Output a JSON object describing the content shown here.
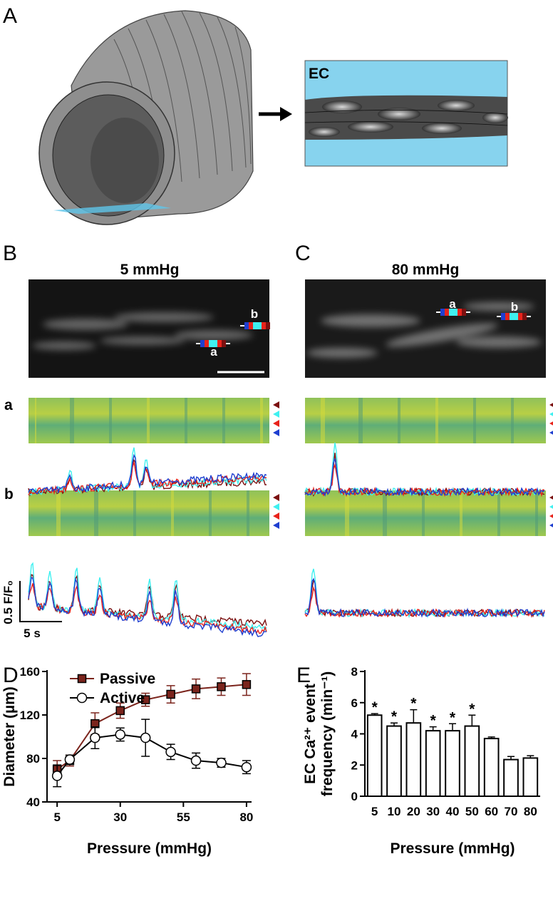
{
  "figure": {
    "panels": [
      "A",
      "B",
      "C",
      "D",
      "E"
    ],
    "ec_label": "EC",
    "conditions": [
      "5 mmHg",
      "80 mmHg"
    ],
    "roi_labels": [
      "a",
      "b"
    ],
    "scale_y": "0.5 F/F₀",
    "scale_x": "5 s"
  },
  "chart_data": [
    {
      "type": "line",
      "xlabel": "Pressure (mmHg)",
      "ylabel": [
        "Diameter (µm)"
      ],
      "x": [
        5,
        10,
        20,
        30,
        40,
        50,
        60,
        70,
        80
      ],
      "xlim": [
        1,
        82
      ],
      "ylim": [
        40,
        160
      ],
      "xticks": [
        5,
        30,
        55,
        80
      ],
      "yticks": [
        40,
        80,
        120,
        160
      ],
      "legend": "upper left",
      "series": [
        {
          "name": "Passive",
          "color": "#7b241c",
          "marker": "square",
          "values": [
            70,
            78,
            112,
            124,
            134,
            139,
            144,
            146,
            148
          ],
          "errors": [
            8,
            5,
            10,
            7,
            6,
            8,
            9,
            8,
            10
          ]
        },
        {
          "name": "Active",
          "color": "#000000",
          "marker": "circle",
          "values": [
            64,
            79,
            99,
            102,
            99,
            86,
            78,
            76,
            72
          ],
          "errors": [
            10,
            4,
            10,
            6,
            17,
            7,
            7,
            4,
            6
          ]
        }
      ]
    },
    {
      "type": "bar",
      "xlabel": "Pressure (mmHg)",
      "ylabel": [
        "EC Ca²⁺ event",
        "frequency (min⁻¹)"
      ],
      "categories": [
        "5",
        "10",
        "20",
        "30",
        "40",
        "50",
        "60",
        "70",
        "80"
      ],
      "values": [
        5.2,
        4.5,
        4.7,
        4.2,
        4.2,
        4.5,
        3.7,
        2.35,
        2.45
      ],
      "errors": [
        0.1,
        0.2,
        0.85,
        0.25,
        0.45,
        0.7,
        0.1,
        0.2,
        0.15
      ],
      "significance": [
        "*",
        "*",
        "*",
        "*",
        "*",
        "*",
        null,
        null,
        null
      ],
      "ylim": [
        0,
        8
      ],
      "yticks": [
        0,
        2,
        4,
        6,
        8
      ],
      "color": "#ffffff"
    }
  ]
}
